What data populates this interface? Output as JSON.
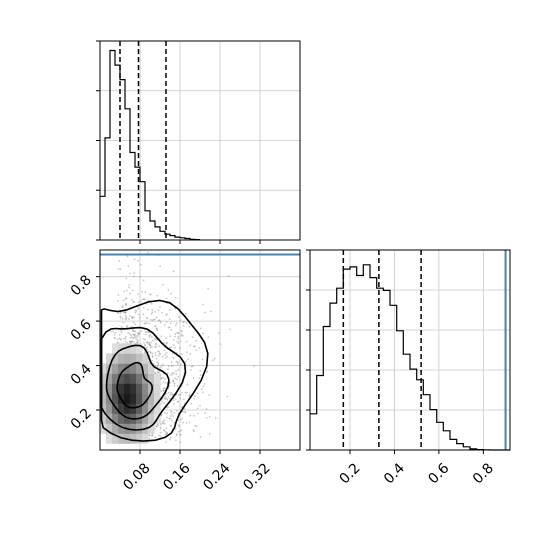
{
  "chart_data": [
    {
      "panel": "top-left",
      "type": "histogram",
      "xlim": [
        0.0,
        0.4
      ],
      "bin_width": 0.01,
      "counts": [
        3,
        7,
        13,
        12,
        11,
        9,
        6,
        5,
        4,
        2,
        1.3,
        0.9,
        0.6,
        0.4,
        0.3,
        0.2,
        0.15,
        0.1,
        0.05,
        0.03
      ],
      "quantiles": [
        0.04,
        0.077,
        0.132
      ],
      "grid": true
    },
    {
      "panel": "bottom-left",
      "type": "scatter-density-contour",
      "xlim": [
        0.0,
        0.4
      ],
      "ylim": [
        0.02,
        0.92
      ],
      "x_ticks": [
        "0.08",
        "0.16",
        "0.24",
        "0.32"
      ],
      "x_tick_values": [
        0.08,
        0.16,
        0.24,
        0.32
      ],
      "y_ticks": [
        "0.2",
        "0.4",
        "0.6",
        "0.8"
      ],
      "y_tick_values": [
        0.2,
        0.4,
        0.6,
        0.8
      ],
      "truth_y": 0.9,
      "density_center": [
        0.05,
        0.25
      ],
      "grid": true
    },
    {
      "panel": "bottom-right",
      "type": "histogram",
      "xlim": [
        0.02,
        0.92
      ],
      "bin_width": 0.03,
      "counts": [
        1.7,
        3.5,
        5.8,
        6.9,
        7.6,
        8.5,
        8.6,
        8.2,
        8.7,
        8.1,
        7.6,
        7.5,
        6.8,
        5.6,
        4.5,
        3.8,
        3.3,
        2.6,
        1.9,
        1.3,
        0.9,
        0.5,
        0.3,
        0.15,
        0.05,
        0.02,
        0.01,
        0.0,
        0.0,
        0.0
      ],
      "quantiles": [
        0.17,
        0.33,
        0.52
      ],
      "truth": 0.9,
      "x_ticks": [
        "0.2",
        "0.4",
        "0.6",
        "0.8"
      ],
      "x_tick_values": [
        0.2,
        0.4,
        0.6,
        0.8
      ],
      "grid": true
    }
  ],
  "colors": {
    "truth_line": "#4682b4",
    "grid": "#c8c8c8",
    "line": "#000000",
    "points": "#888888"
  }
}
